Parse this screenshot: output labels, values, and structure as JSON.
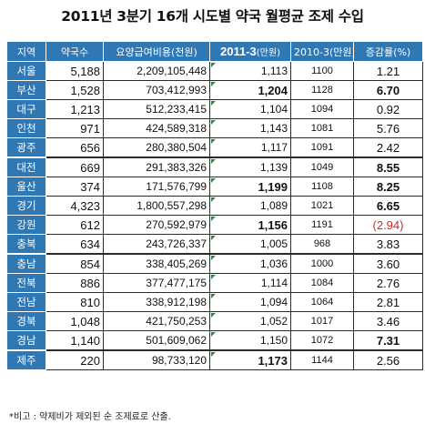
{
  "title": "2011년 3분기 16개 시도별 약국 월평균 조제 수입",
  "headers": {
    "region": "지역",
    "pharmacy_count": "약국수",
    "billing_cost": "요양급여비용(천원)",
    "current_main": "2011-3",
    "current_unit": "(만원)",
    "previous": "2010-3(만원)",
    "change_rate": "증감률(%)"
  },
  "rows": [
    {
      "region": "서울",
      "pharmacies": "5,188",
      "billing": "2,209,105,448",
      "current": "1,113",
      "previous": "1100",
      "change": "1.21"
    },
    {
      "region": "부산",
      "pharmacies": "1,528",
      "billing": "703,412,993",
      "current": "1,204",
      "previous": "1128",
      "change": "6.70"
    },
    {
      "region": "대구",
      "pharmacies": "1,213",
      "billing": "512,233,415",
      "current": "1,104",
      "previous": "1094",
      "change": "0.92"
    },
    {
      "region": "인천",
      "pharmacies": "971",
      "billing": "424,589,318",
      "current": "1,143",
      "previous": "1081",
      "change": "5.76"
    },
    {
      "region": "광주",
      "pharmacies": "656",
      "billing": "280,380,504",
      "current": "1,117",
      "previous": "1091",
      "change": "2.42"
    },
    {
      "region": "대전",
      "pharmacies": "669",
      "billing": "291,383,326",
      "current": "1,139",
      "previous": "1049",
      "change": "8.55"
    },
    {
      "region": "울산",
      "pharmacies": "374",
      "billing": "171,576,799",
      "current": "1,199",
      "previous": "1108",
      "change": "8.25"
    },
    {
      "region": "경기",
      "pharmacies": "4,323",
      "billing": "1,800,557,298",
      "current": "1,089",
      "previous": "1021",
      "change": "6.65"
    },
    {
      "region": "강원",
      "pharmacies": "612",
      "billing": "270,592,979",
      "current": "1,156",
      "previous": "1191",
      "change": "(2.94)"
    },
    {
      "region": "충북",
      "pharmacies": "634",
      "billing": "243,726,337",
      "current": "1,005",
      "previous": "968",
      "change": "3.83"
    },
    {
      "region": "충남",
      "pharmacies": "854",
      "billing": "338,405,269",
      "current": "1,036",
      "previous": "1000",
      "change": "3.60"
    },
    {
      "region": "전북",
      "pharmacies": "886",
      "billing": "377,477,175",
      "current": "1,114",
      "previous": "1084",
      "change": "2.76"
    },
    {
      "region": "전남",
      "pharmacies": "810",
      "billing": "338,912,198",
      "current": "1,094",
      "previous": "1064",
      "change": "2.81"
    },
    {
      "region": "경북",
      "pharmacies": "1,048",
      "billing": "421,750,253",
      "current": "1,052",
      "previous": "1017",
      "change": "3.46"
    },
    {
      "region": "경남",
      "pharmacies": "1,140",
      "billing": "501,609,062",
      "current": "1,150",
      "previous": "1072",
      "change": "7.31"
    },
    {
      "region": "제주",
      "pharmacies": "220",
      "billing": "98,733,120",
      "current": "1,173",
      "previous": "1144",
      "change": "2.56"
    }
  ],
  "note": "*비고 : 약제비가 제외된 순 조제료로 산출.",
  "colors": {
    "header_bg": "#2f78b4",
    "negative": "#d32a2a",
    "corner_mark": "#2f8a3a"
  }
}
